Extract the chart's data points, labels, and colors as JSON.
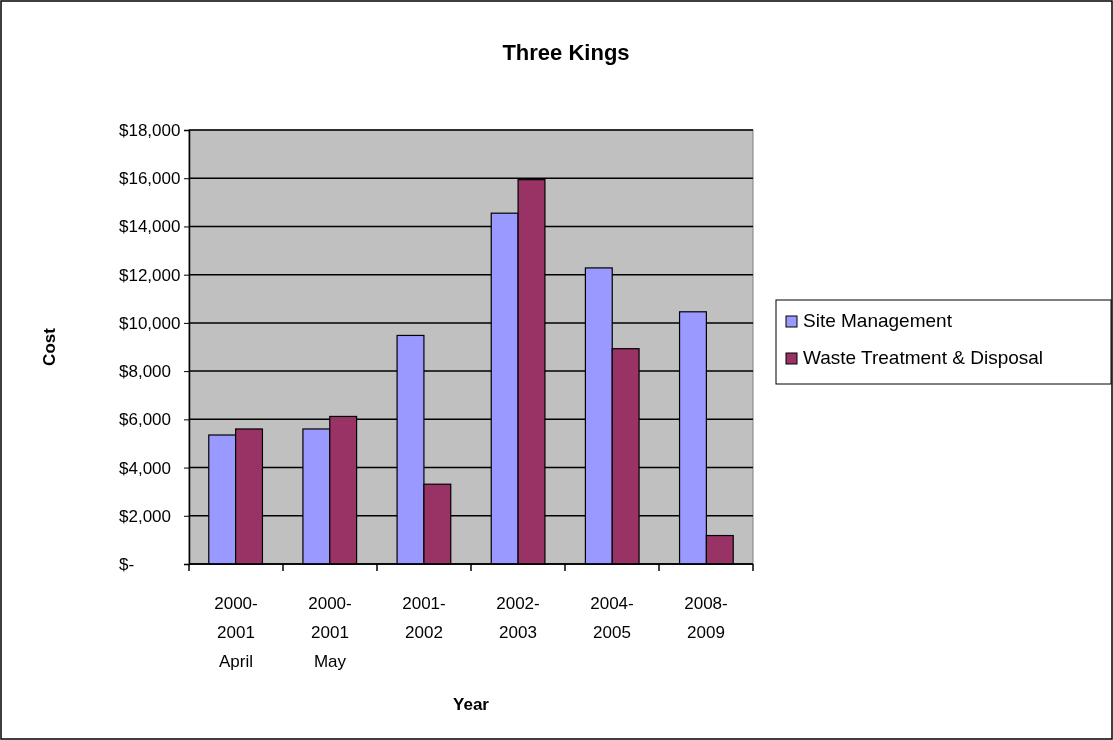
{
  "chart_data": {
    "type": "bar",
    "title": "Three Kings",
    "xlabel": "Year",
    "ylabel": "Cost",
    "categories": [
      "2000-\n2001\nApril",
      "2000-\n2001\nMay",
      "2001-\n2002",
      "2002-\n2003",
      "2004-\n2005",
      "2008-\n2009"
    ],
    "series": [
      {
        "name": "Site Management",
        "color": "#9999ff",
        "values": [
          5350,
          5600,
          9480,
          14550,
          12280,
          10460
        ]
      },
      {
        "name": "Waste Treatment & Disposal",
        "color": "#993366",
        "values": [
          5600,
          6120,
          3310,
          15940,
          8930,
          1180
        ]
      }
    ],
    "ylim": [
      0,
      18000
    ],
    "yticks": [
      {
        "value": 0,
        "label": "$-"
      },
      {
        "value": 2000,
        "label": "$2,000"
      },
      {
        "value": 4000,
        "label": "$4,000"
      },
      {
        "value": 6000,
        "label": "$6,000"
      },
      {
        "value": 8000,
        "label": "$8,000"
      },
      {
        "value": 10000,
        "label": "$10,000"
      },
      {
        "value": 12000,
        "label": "$12,000"
      },
      {
        "value": 14000,
        "label": "$14,000"
      },
      {
        "value": 16000,
        "label": "$16,000"
      },
      {
        "value": 18000,
        "label": "$18,000"
      }
    ],
    "grid": "y",
    "legend": "right"
  }
}
